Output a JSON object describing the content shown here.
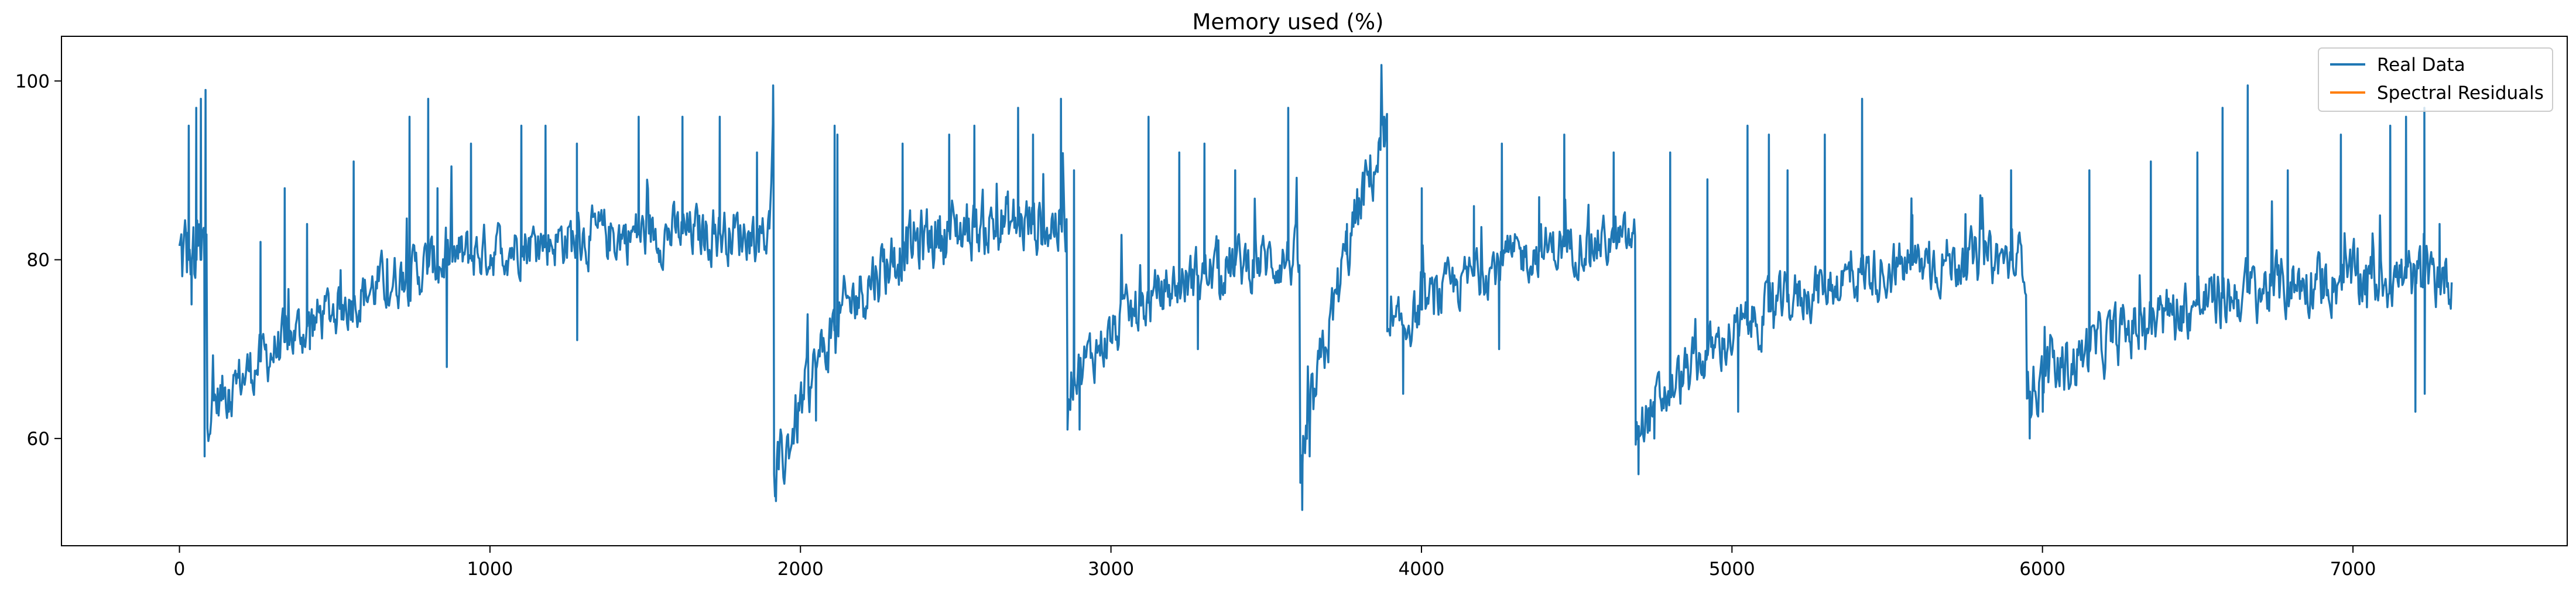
{
  "chart_data": {
    "type": "line",
    "title": "Memory used  (%)",
    "xlabel": "",
    "ylabel": "",
    "xlim": [
      -380,
      7690
    ],
    "ylim": [
      48,
      105
    ],
    "xticks": [
      0,
      1000,
      2000,
      3000,
      4000,
      5000,
      6000,
      7000
    ],
    "yticks": [
      60,
      80,
      100
    ],
    "legend_position": "top-right",
    "grid": false,
    "colors": {
      "real": "#1f77b4",
      "spectral": "#ff7f0e"
    },
    "series": [
      {
        "name": "Real Data",
        "segments": [
          {
            "start": 0,
            "end": 90,
            "base_start": 80,
            "base_end": 80,
            "noise": 5,
            "spikes": [
              [
                30,
                95
              ],
              [
                55,
                97
              ],
              [
                70,
                98
              ],
              [
                85,
                99
              ]
            ],
            "dips": [
              [
                40,
                75
              ],
              [
                80,
                58
              ]
            ]
          },
          {
            "start": 90,
            "end": 1900,
            "base_start": 63,
            "base_end": 83,
            "curve": 0.3,
            "noise": 2.5,
            "spikes": [
              [
                260,
                82
              ],
              [
                340,
                88
              ],
              [
                410,
                84
              ],
              [
                560,
                91
              ],
              [
                740,
                96
              ],
              [
                800,
                98
              ],
              [
                830,
                88
              ],
              [
                940,
                93
              ],
              [
                1100,
                95
              ],
              [
                1180,
                95
              ],
              [
                1280,
                93
              ],
              [
                1480,
                96
              ],
              [
                1620,
                96
              ],
              [
                1740,
                96
              ],
              [
                1860,
                92
              ]
            ],
            "dips": [
              [
                160,
                63
              ],
              [
                420,
                70
              ],
              [
                860,
                68
              ],
              [
                1280,
                71
              ]
            ]
          },
          {
            "start": 1900,
            "end": 1915,
            "base_start": 84,
            "base_end": 98,
            "noise": 1,
            "spikes": [
              [
                1912,
                99.5
              ]
            ]
          },
          {
            "start": 1915,
            "end": 2860,
            "base_start": 54,
            "base_end": 84,
            "curve": 0.25,
            "noise": 3,
            "spikes": [
              [
                2110,
                95
              ],
              [
                2120,
                94
              ],
              [
                2330,
                93
              ],
              [
                2480,
                94
              ],
              [
                2560,
                95
              ],
              [
                2700,
                97
              ],
              [
                2750,
                94
              ],
              [
                2840,
                98
              ]
            ],
            "dips": [
              [
                1920,
                53
              ],
              [
                2050,
                62
              ],
              [
                2860,
                61
              ]
            ]
          },
          {
            "start": 2860,
            "end": 3610,
            "base_start": 66,
            "base_end": 80,
            "curve": 0.4,
            "noise": 2.5,
            "spikes": [
              [
                2880,
                90
              ],
              [
                3120,
                96
              ],
              [
                3220,
                92
              ],
              [
                3300,
                93
              ],
              [
                3400,
                90
              ],
              [
                3570,
                97
              ]
            ],
            "dips": [
              [
                2900,
                61
              ],
              [
                3280,
                70
              ]
            ]
          },
          {
            "start": 3610,
            "end": 3890,
            "base_start": 56,
            "base_end": 93,
            "curve": 0.7,
            "noise": 3,
            "spikes": [
              [
                3760,
                84
              ],
              [
                3880,
                96
              ]
            ],
            "dips": [
              [
                3615,
                52
              ],
              [
                3640,
                58
              ]
            ]
          },
          {
            "start": 3890,
            "end": 4690,
            "base_start": 71,
            "base_end": 82,
            "curve": 0.4,
            "noise": 2.3,
            "spikes": [
              [
                4000,
                88
              ],
              [
                4170,
                86
              ],
              [
                4260,
                93
              ],
              [
                4380,
                87
              ],
              [
                4460,
                94
              ],
              [
                4620,
                92
              ]
            ],
            "dips": [
              [
                3940,
                65
              ],
              [
                4250,
                70
              ]
            ]
          },
          {
            "start": 4690,
            "end": 5950,
            "base_start": 61,
            "base_end": 80,
            "curve": 0.35,
            "noise": 2.5,
            "spikes": [
              [
                4800,
                92
              ],
              [
                4920,
                89
              ],
              [
                5050,
                95
              ],
              [
                5120,
                94
              ],
              [
                5180,
                90
              ],
              [
                5300,
                94
              ],
              [
                5420,
                98
              ],
              [
                5580,
                85
              ],
              [
                5900,
                90
              ]
            ],
            "dips": [
              [
                4700,
                56
              ],
              [
                4750,
                60
              ],
              [
                5020,
                63
              ]
            ]
          },
          {
            "start": 5950,
            "end": 7320,
            "base_start": 65,
            "base_end": 78,
            "curve": 0.35,
            "noise": 2.8,
            "spikes": [
              [
                6150,
                90
              ],
              [
                6350,
                91
              ],
              [
                6500,
                92
              ],
              [
                6580,
                97
              ],
              [
                6660,
                99.5
              ],
              [
                6790,
                90
              ],
              [
                6960,
                94
              ],
              [
                7120,
                95
              ],
              [
                7170,
                96
              ],
              [
                7230,
                97
              ],
              [
                7280,
                84
              ]
            ],
            "dips": [
              [
                5960,
                60
              ],
              [
                6000,
                63
              ],
              [
                7200,
                63
              ],
              [
                7230,
                65
              ]
            ]
          }
        ]
      },
      {
        "name": "Spectral Residuals",
        "segments": []
      }
    ]
  }
}
